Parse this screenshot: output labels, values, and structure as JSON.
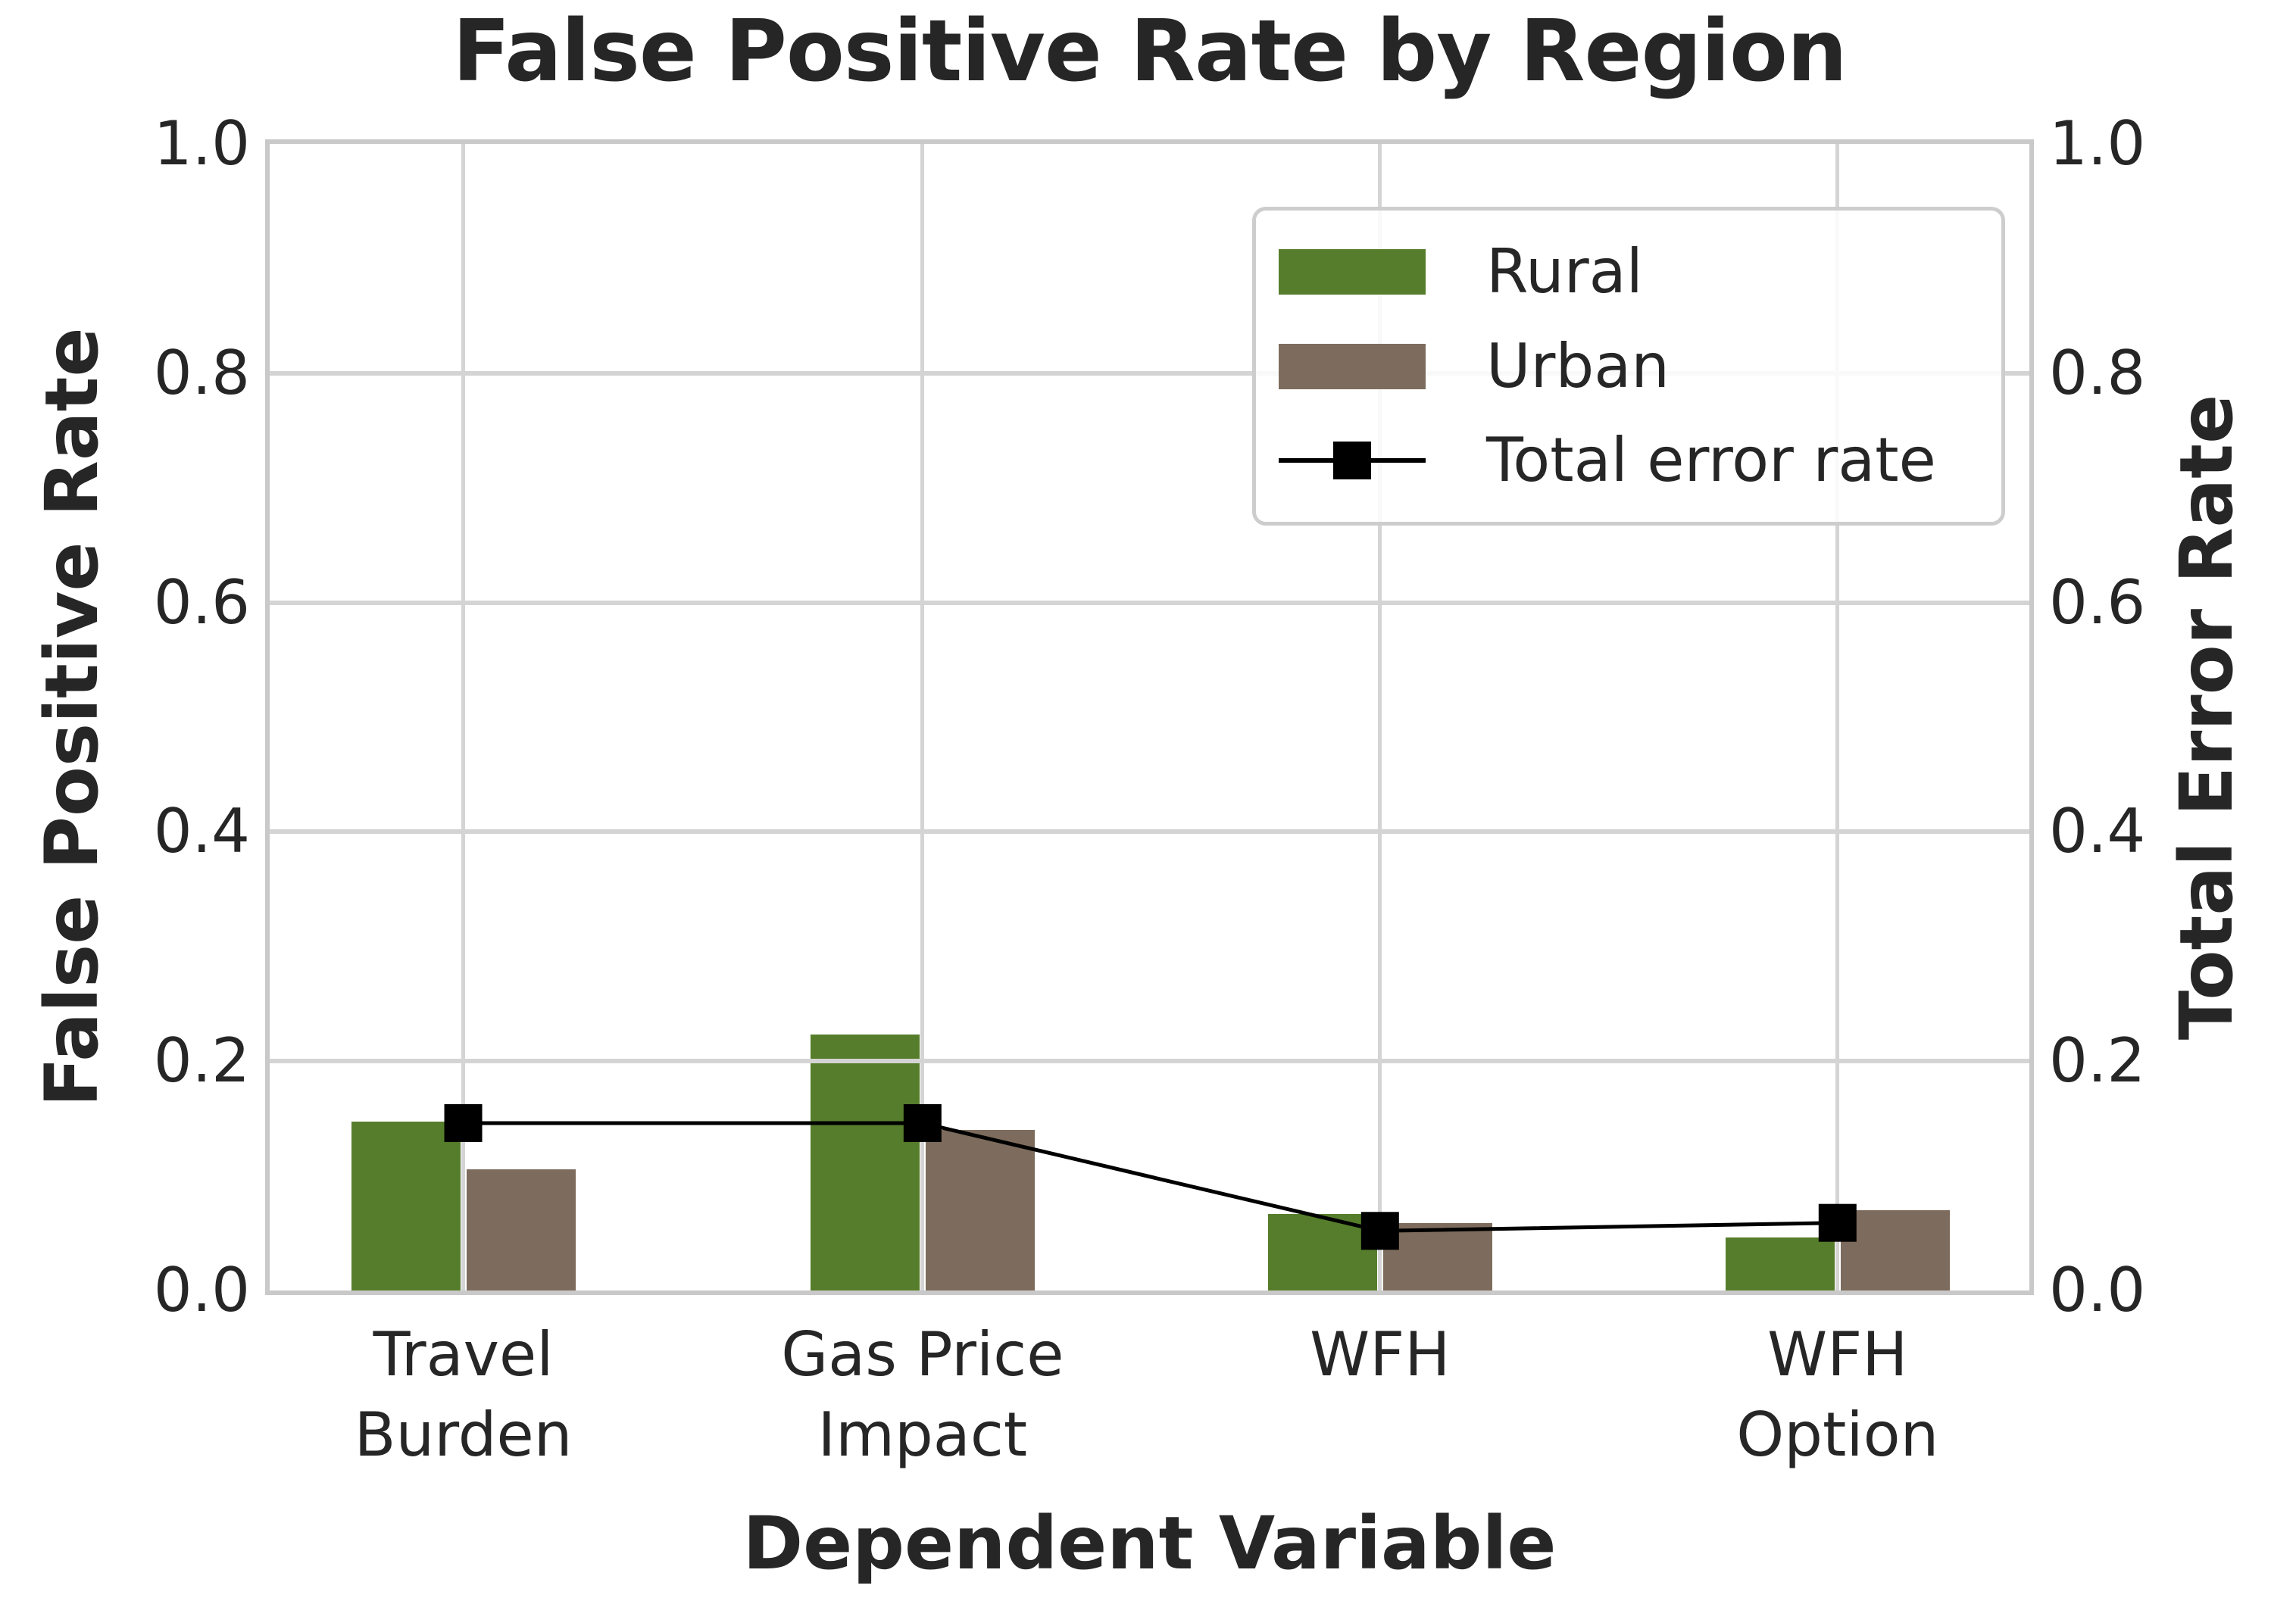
{
  "figure": {
    "background": "#ffffff",
    "text_color": "#262626",
    "grid_color": "#d4d4d4",
    "frame_color": "#c9c9c9"
  },
  "chart_data": {
    "type": "bar",
    "title": "False Positive Rate by Region",
    "xlabel": "Dependent Variable",
    "ylabel_left": "False Positive Rate",
    "ylabel_right": "Total Error Rate",
    "categories": [
      "Travel\nBurden",
      "Gas Price\nImpact",
      "WFH",
      "WFH\nOption"
    ],
    "series": [
      {
        "name": "Rural",
        "type": "bar",
        "axis": "left",
        "color": "#567d2b",
        "values": [
          0.147,
          0.223,
          0.067,
          0.046
        ]
      },
      {
        "name": "Urban",
        "type": "bar",
        "axis": "left",
        "color": "#7d6c5d",
        "values": [
          0.106,
          0.14,
          0.059,
          0.07
        ]
      },
      {
        "name": "Total error rate",
        "type": "line",
        "axis": "right",
        "color": "#000000",
        "marker": "square",
        "values": [
          0.146,
          0.146,
          0.052,
          0.059
        ]
      }
    ],
    "ylim": [
      0.0,
      1.0
    ],
    "yticks": [
      0.0,
      0.2,
      0.4,
      0.6,
      0.8,
      1.0
    ],
    "grid": true,
    "legend_position": "upper right"
  }
}
